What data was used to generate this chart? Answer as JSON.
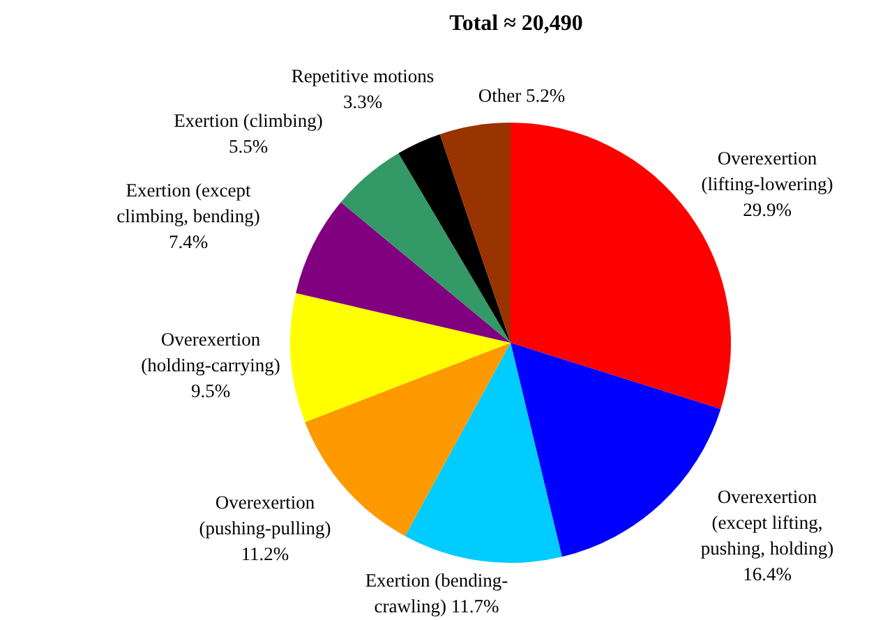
{
  "chart_data": {
    "type": "pie",
    "title": "Total ≈ 20,490",
    "categories": [
      "Overexertion\n(lifting-lowering)",
      "Overexertion\n(except lifting,\npushing, holding)",
      "Exertion (bending-\ncrawling)",
      "Overexertion\n(pushing-pulling)",
      "Overexertion\n(holding-carrying)",
      "Exertion (except\nclimbing, bending)",
      "Exertion (climbing)",
      "Repetitive motions",
      "Other"
    ],
    "values": [
      29.9,
      16.4,
      11.7,
      11.2,
      9.5,
      7.4,
      5.5,
      3.3,
      5.2
    ],
    "value_labels": [
      "29.9%",
      "16.4%",
      "11.7%",
      "11.2%",
      "9.5%",
      "7.4%",
      "5.5%",
      "3.3%",
      "5.2%"
    ],
    "data_labels": true,
    "colors": [
      "#ff0000",
      "#0000ff",
      "#00ccff",
      "#ff9900",
      "#ffff00",
      "#800080",
      "#339966",
      "#000000",
      "#993300"
    ]
  }
}
